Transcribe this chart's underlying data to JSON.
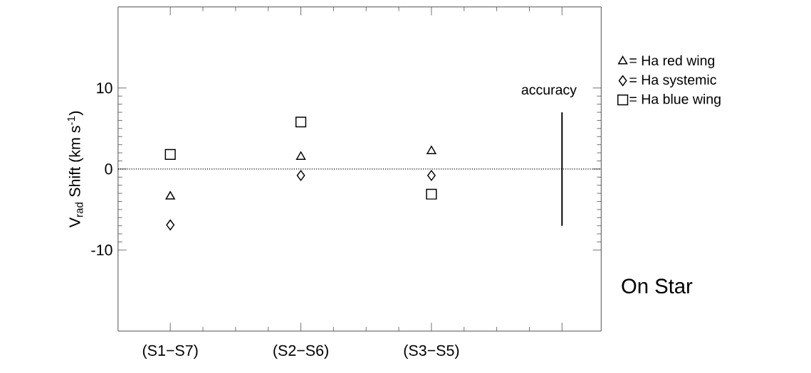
{
  "chart_data": {
    "type": "scatter",
    "ylabel": "V$_{rad}$ Shift (km s$^{-1}$)",
    "categories": [
      "(S1−S7)",
      "(S2−S6)",
      "(S3−S5)",
      null
    ],
    "ylim": [
      -20,
      20
    ],
    "yticks": [
      -10,
      0,
      10
    ],
    "legend": "right",
    "series": [
      {
        "name": "= Ha red wing",
        "color": "#000000",
        "marker": "triangle",
        "values": [
          -3.4,
          1.5,
          2.2,
          null
        ]
      },
      {
        "name": "= Ha systemic",
        "color": "#000000",
        "marker": "diamond",
        "values": [
          -6.9,
          -0.8,
          -0.8,
          null
        ]
      },
      {
        "name": "= Ha blue wing",
        "color": "#000000",
        "marker": "square",
        "values": [
          1.8,
          5.8,
          -3.1,
          null
        ]
      },
      {
        "type": "bar",
        "color": "#000000",
        "base": [
          null,
          null,
          null,
          -7
        ],
        "values": [
          null,
          null,
          null,
          14
        ]
      }
    ],
    "ref_lines": [
      {
        "axis": "y",
        "value": 0,
        "line_style": "dotted"
      }
    ],
    "annotations": [
      "accuracy",
      "On Star"
    ]
  }
}
